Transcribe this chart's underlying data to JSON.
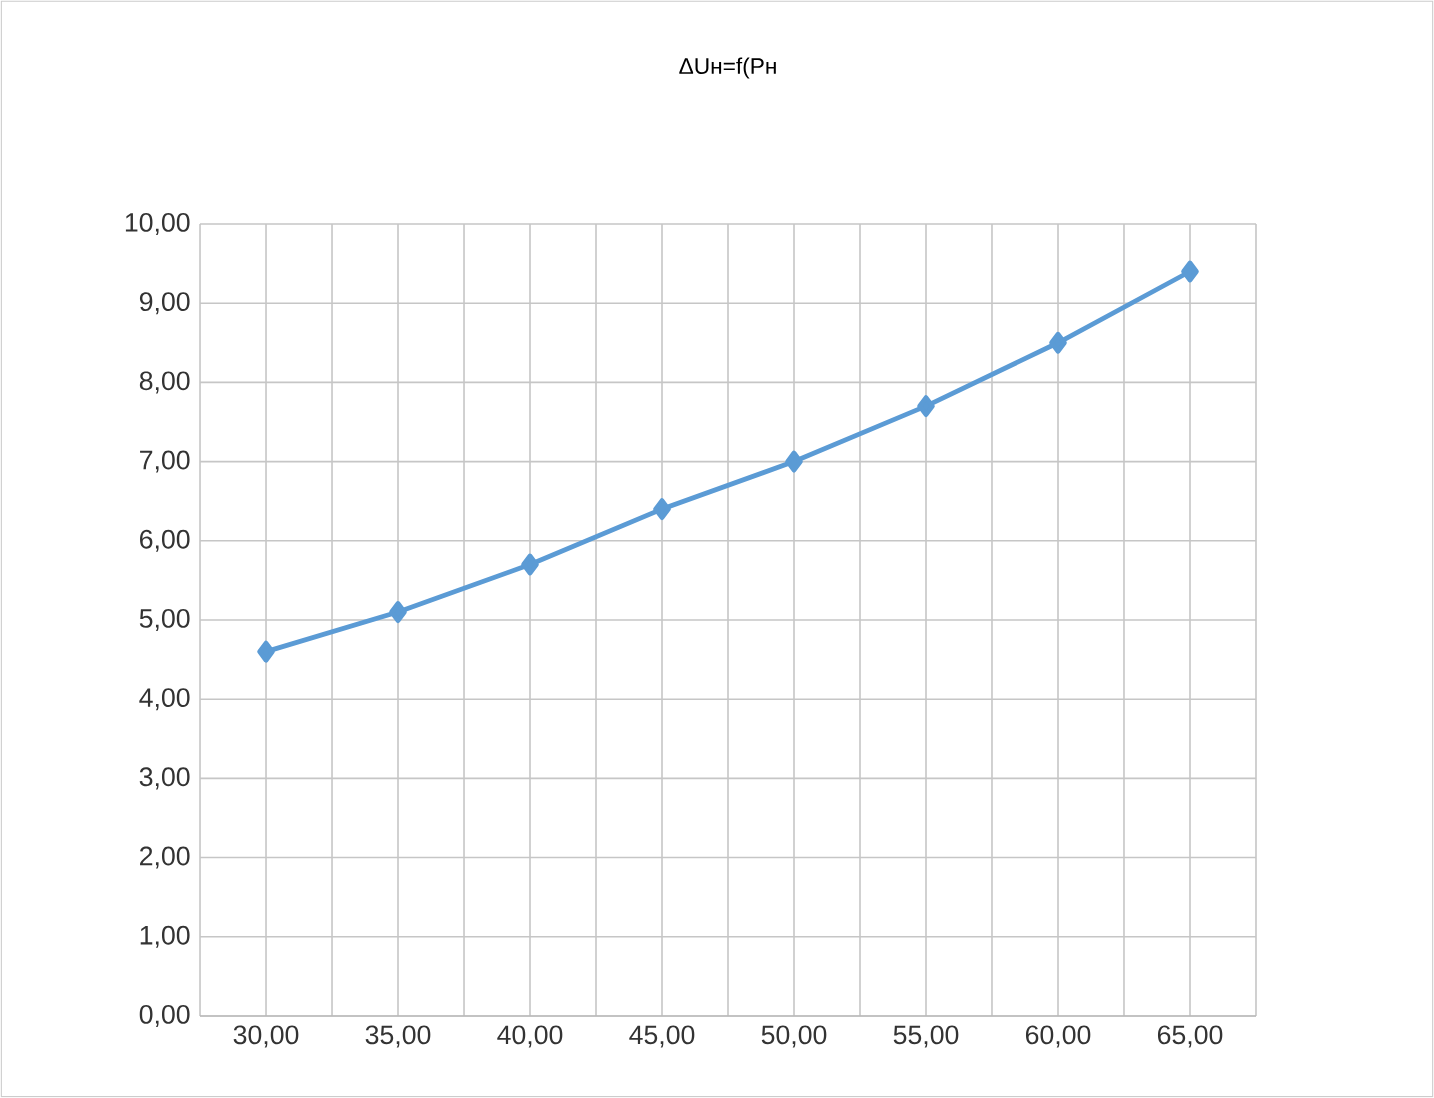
{
  "chart_data": {
    "type": "line",
    "title": "ΔUн=f(Pн",
    "x": [
      30,
      35,
      40,
      45,
      50,
      55,
      60,
      65
    ],
    "series": [
      {
        "color": "#5b9bd5",
        "values": [
          4.6,
          5.1,
          5.7,
          6.4,
          7.0,
          7.7,
          8.5,
          9.4
        ]
      }
    ],
    "xlim": [
      27.5,
      67.5
    ],
    "xticks": [
      {
        "value": 27.5,
        "label": null
      },
      {
        "value": 30,
        "label": "30,00"
      },
      {
        "value": 32.5,
        "label": null
      },
      {
        "value": 35,
        "label": "35,00"
      },
      {
        "value": 37.5,
        "label": null
      },
      {
        "value": 40,
        "label": "40,00"
      },
      {
        "value": 42.5,
        "label": null
      },
      {
        "value": 45,
        "label": "45,00"
      },
      {
        "value": 47.5,
        "label": null
      },
      {
        "value": 50,
        "label": "50,00"
      },
      {
        "value": 52.5,
        "label": null
      },
      {
        "value": 55,
        "label": "55,00"
      },
      {
        "value": 57.5,
        "label": null
      },
      {
        "value": 60,
        "label": "60,00"
      },
      {
        "value": 62.5,
        "label": null
      },
      {
        "value": 65,
        "label": "65,00"
      },
      {
        "value": 67.5,
        "label": null
      }
    ],
    "ylim": [
      0,
      10
    ],
    "yticks": [
      {
        "value": 0,
        "label": "0,00"
      },
      {
        "value": 1,
        "label": "1,00"
      },
      {
        "value": 2,
        "label": "2,00"
      },
      {
        "value": 3,
        "label": "3,00"
      },
      {
        "value": 4,
        "label": "4,00"
      },
      {
        "value": 5,
        "label": "5,00"
      },
      {
        "value": 6,
        "label": "6,00"
      },
      {
        "value": 7,
        "label": "7,00"
      },
      {
        "value": 8,
        "label": "8,00"
      },
      {
        "value": 9,
        "label": "9,00"
      },
      {
        "value": 10,
        "label": "10,00"
      }
    ],
    "grid": true,
    "marker": "diamond",
    "line_style": "solid"
  }
}
